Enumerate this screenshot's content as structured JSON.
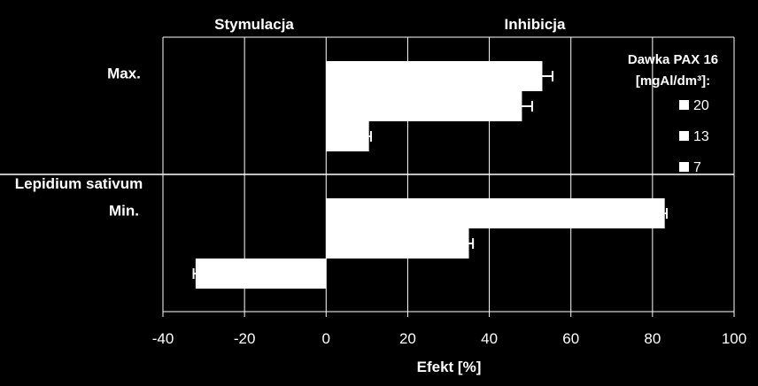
{
  "chart_data": {
    "type": "bar",
    "orientation": "horizontal",
    "title": "",
    "xlabel": "Efekt [%]",
    "ylabel": "Lepidium sativum",
    "xlim": [
      -40,
      100
    ],
    "x_ticks": [
      -40,
      -20,
      0,
      20,
      40,
      60,
      80,
      100
    ],
    "grid": true,
    "region_labels": {
      "left": "Stymulacja",
      "right": "Inhibicja"
    },
    "groups": [
      "Max.",
      "Min."
    ],
    "legend": {
      "title_line1": "Dawka PAX 16",
      "title_line2": "[mgAl/dm³]:",
      "position": "top-right"
    },
    "series": [
      {
        "name": "20",
        "values": [
          53,
          83
        ],
        "errors": [
          2.5,
          0.5
        ]
      },
      {
        "name": "13",
        "values": [
          48,
          35
        ],
        "errors": [
          2.5,
          1.0
        ]
      },
      {
        "name": "7",
        "values": [
          10.5,
          -32
        ],
        "errors": [
          0.5,
          0.5
        ]
      }
    ]
  }
}
